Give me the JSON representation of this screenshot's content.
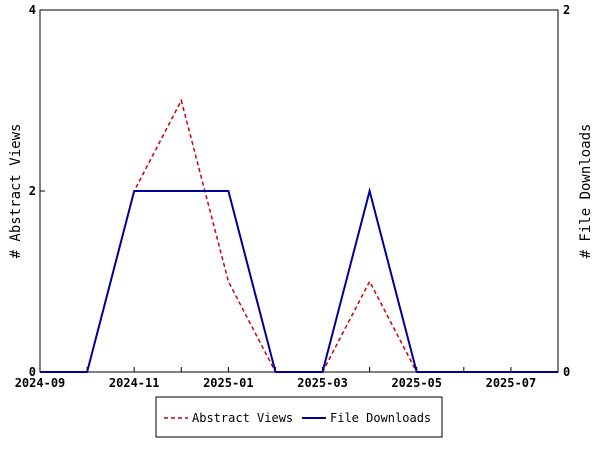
{
  "chart_data": {
    "type": "line",
    "x": [
      "2024-09",
      "2024-10",
      "2024-11",
      "2024-12",
      "2025-01",
      "2025-02",
      "2025-03",
      "2025-04",
      "2025-05",
      "2025-06",
      "2025-07",
      "2025-08"
    ],
    "x_tick_labels": [
      "2024-09",
      "2024-11",
      "2025-01",
      "2025-03",
      "2025-05",
      "2025-07"
    ],
    "left_axis": {
      "label": "# Abstract Views",
      "ylim": [
        0,
        4
      ],
      "ticks": [
        "0",
        "2",
        "4"
      ]
    },
    "right_axis": {
      "label": "# File Downloads",
      "ylim": [
        0,
        2
      ],
      "ticks": [
        "0",
        "2"
      ]
    },
    "series": [
      {
        "name": "Abstract Views",
        "axis": "left",
        "color": "#cc0000",
        "style": "dashed",
        "values": [
          0,
          0,
          2,
          3,
          1,
          0,
          0,
          1,
          0,
          0,
          0,
          0
        ]
      },
      {
        "name": "File Downloads",
        "axis": "right",
        "color": "#000099",
        "style": "solid",
        "values": [
          0,
          0,
          1,
          1,
          1,
          0,
          0,
          1,
          0,
          0,
          0,
          0
        ]
      }
    ],
    "legend": {
      "placement": "bottom-center"
    },
    "grid": false
  }
}
